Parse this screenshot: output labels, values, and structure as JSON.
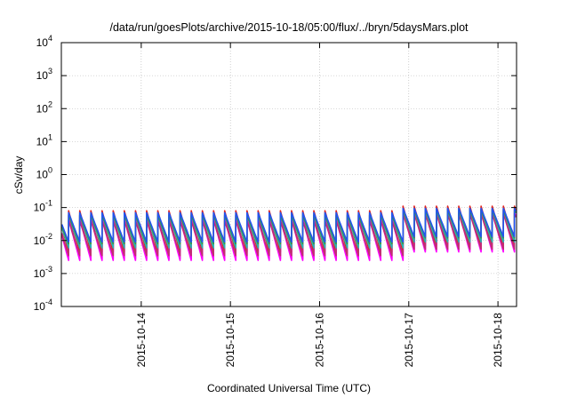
{
  "chart_data": {
    "type": "line",
    "title": "/data/run/goesPlots/archive/2015-10-18/05:00/flux/../bryn/5daysMars.plot",
    "xlabel": "Coordinated Universal Time (UTC)",
    "ylabel": "cSv/day",
    "yscale": "log",
    "ylim": [
      0.0001,
      10000
    ],
    "ytick_exponents": [
      "4",
      "3",
      "2",
      "1",
      "0",
      "-1",
      "-2",
      "-3",
      "-4"
    ],
    "xlim": [
      "2015-10-13T02:30",
      "2015-10-18T05:00"
    ],
    "xticks": [
      "2015-10-14",
      "2015-10-15",
      "2015-10-16",
      "2015-10-17",
      "2015-10-18"
    ],
    "grid": true,
    "legend": "none",
    "cycle_minutes": 180,
    "series": [
      {
        "color": "#e0211d",
        "peak": 0.08,
        "trough": 0.0045,
        "late_peak": 0.11,
        "late_trough": 0.007
      },
      {
        "color": "#9b2d7f",
        "peak": 0.055,
        "trough": 0.0028,
        "late_peak": 0.09,
        "late_trough": 0.005
      },
      {
        "color": "#ff00ff",
        "peak": 0.045,
        "trough": 0.0025,
        "late_peak": 0.075,
        "late_trough": 0.0045
      },
      {
        "color": "#c03070",
        "peak": 0.04,
        "trough": 0.0035,
        "late_peak": 0.065,
        "late_trough": 0.0055
      },
      {
        "color": "#2ab0b0",
        "peak": 0.06,
        "trough": 0.006,
        "late_peak": 0.085,
        "late_trough": 0.009
      },
      {
        "color": "#3a9a3a",
        "peak": 0.06,
        "trough": 0.008,
        "late_peak": 0.085,
        "late_trough": 0.012
      },
      {
        "color": "#2255ee",
        "peak": 0.07,
        "trough": 0.009,
        "late_peak": 0.095,
        "late_trough": 0.013
      }
    ]
  }
}
